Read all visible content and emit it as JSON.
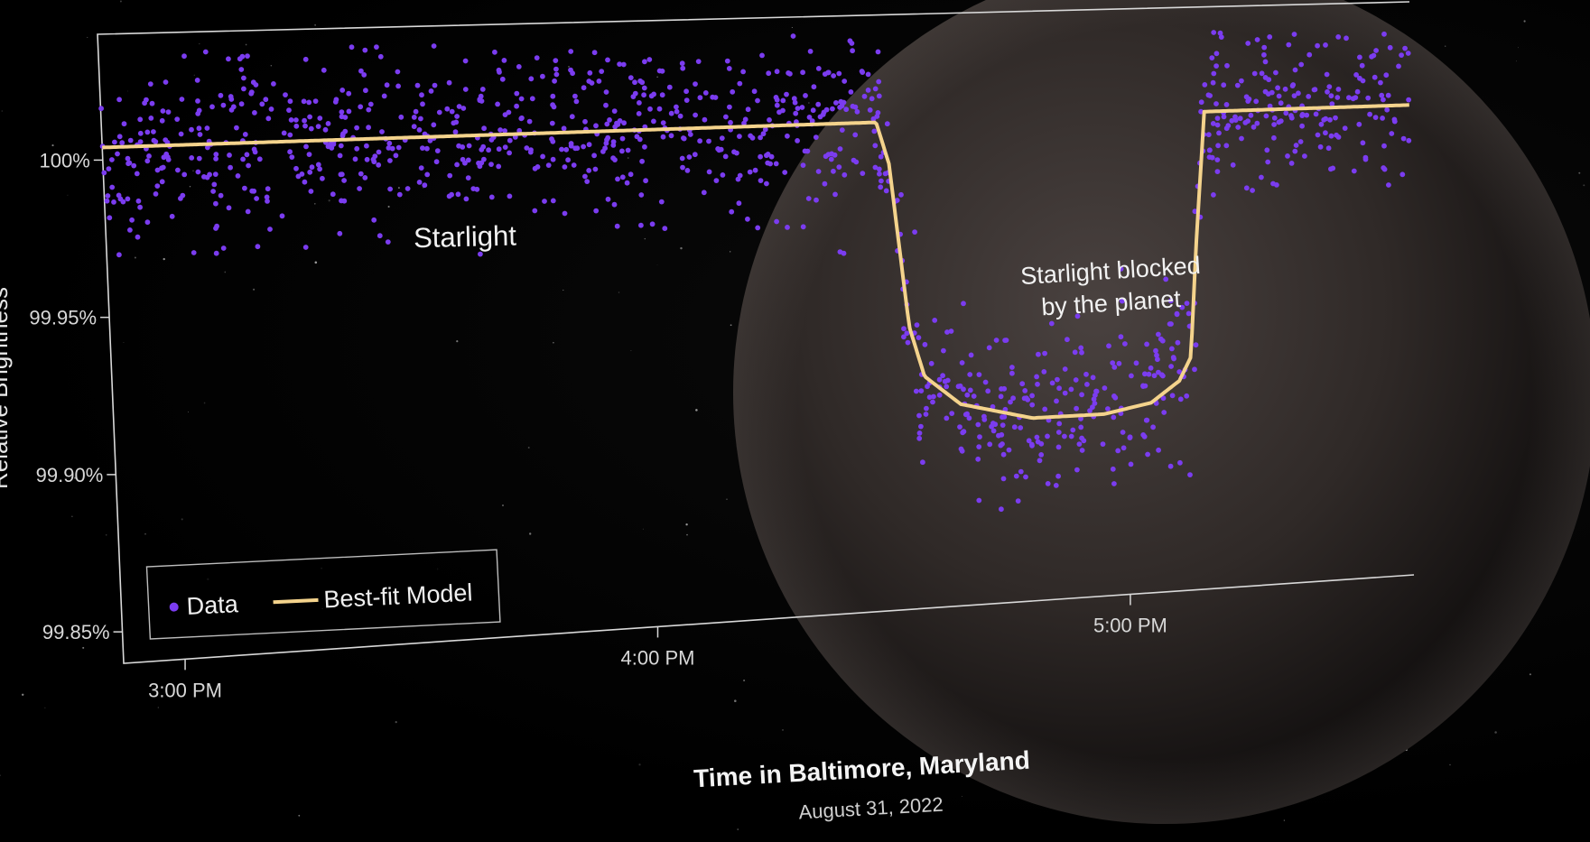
{
  "chart_data": {
    "type": "scatter",
    "title": "",
    "xlabel": "Time in Baltimore, Maryland",
    "x_sublabel": "August 31, 2022",
    "ylabel": "Relative Brightness",
    "x_ticks": [
      "3:00 PM",
      "4:00 PM",
      "5:00 PM"
    ],
    "y_ticks": [
      "100%",
      "99.95%",
      "99.90%",
      "99.85%"
    ],
    "xlim": [
      "2:52 PM",
      "5:40 PM"
    ],
    "ylim": [
      99.84,
      100.04
    ],
    "grid": false,
    "legend": {
      "placement": "bottom-left",
      "entries": [
        {
          "label": "Data",
          "marker": "dot",
          "color": "#7b3cf0"
        },
        {
          "label": "Best-fit Model",
          "marker": "line",
          "color": "#f4d38c"
        }
      ]
    },
    "annotations": [
      {
        "text": "Starlight",
        "at_time": "3:35 PM",
        "at_y": 99.97
      },
      {
        "text_line1": "Starlight blocked",
        "text_line2": "by the planet",
        "at_time": "4:59 PM",
        "at_y": 99.945
      }
    ],
    "series": [
      {
        "name": "Best-fit Model",
        "kind": "line",
        "color": "#f4d38c",
        "points": [
          {
            "t": 2.87,
            "y": 100.004
          },
          {
            "t": 4.485,
            "y": 100.004
          },
          {
            "t": 4.51,
            "y": 99.99
          },
          {
            "t": 4.545,
            "y": 99.935
          },
          {
            "t": 4.575,
            "y": 99.918
          },
          {
            "t": 4.65,
            "y": 99.908
          },
          {
            "t": 4.8,
            "y": 99.902
          },
          {
            "t": 4.95,
            "y": 99.902
          },
          {
            "t": 5.05,
            "y": 99.905
          },
          {
            "t": 5.11,
            "y": 99.912
          },
          {
            "t": 5.135,
            "y": 99.92
          },
          {
            "t": 5.15,
            "y": 99.96
          },
          {
            "t": 5.17,
            "y": 100.004
          },
          {
            "t": 5.6,
            "y": 100.004
          }
        ]
      },
      {
        "name": "Data",
        "kind": "scatter",
        "color": "#7b3cf0",
        "generator": {
          "count": 1150,
          "noise_sigma": 0.014,
          "t_start": 2.87,
          "t_end": 5.6,
          "seed": 7
        }
      }
    ]
  },
  "colors": {
    "data": "#7b3cf0",
    "model": "#f4d38c",
    "axis": "#d9d9d9",
    "planet": "#3a3331"
  }
}
